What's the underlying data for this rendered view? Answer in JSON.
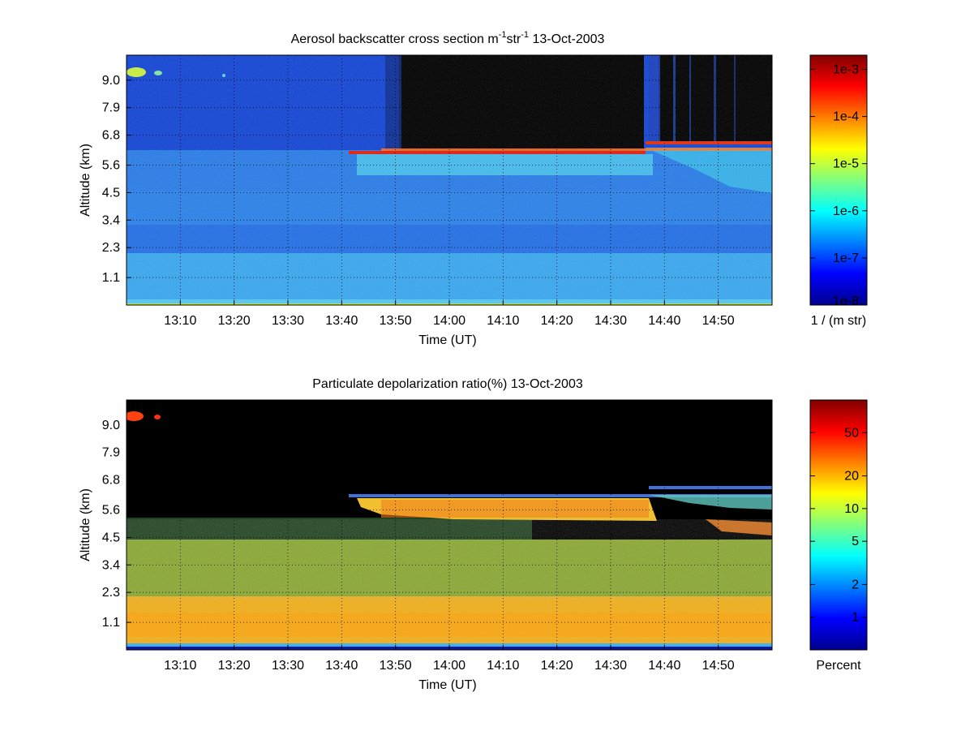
{
  "chart_data": [
    {
      "type": "heatmap",
      "title_main": "Aerosol backscatter cross section m",
      "title_sup1": "-1",
      "title_mid": "str",
      "title_sup2": "-1",
      "title_date": "13-Oct-2003",
      "xlabel": "Time (UT)",
      "ylabel": "Altitude (km)",
      "x_range": [
        "13:00",
        "15:00"
      ],
      "x_ticks": [
        "13:10",
        "13:20",
        "13:30",
        "13:40",
        "13:50",
        "14:00",
        "14:10",
        "14:20",
        "14:30",
        "14:40",
        "14:50"
      ],
      "y_range": [
        0.0,
        10.0
      ],
      "y_ticks": [
        1.1,
        2.3,
        3.4,
        4.5,
        5.6,
        6.8,
        7.9,
        9.0
      ],
      "y_tick_labels": [
        "1.1",
        "2.3",
        "3.4",
        "4.5",
        "5.6",
        "6.8",
        "7.9",
        "9.0"
      ],
      "grid": true,
      "colorbar": {
        "scale": "log",
        "range": [
          1e-08,
          0.002
        ],
        "ticks": [
          1e-08,
          1e-07,
          1e-06,
          1e-05,
          0.0001,
          0.001
        ],
        "tick_labels": [
          "1e-8",
          "1e-7",
          "1e-6",
          "1e-5",
          "1e-4",
          "1e-3"
        ],
        "label": "1 / (m str)",
        "colormap": "jet"
      }
    },
    {
      "type": "heatmap",
      "title": "Particulate depolarization ratio(%)  13-Oct-2003",
      "xlabel": "Time (UT)",
      "ylabel": "Altitude (km)",
      "x_range": [
        "13:00",
        "15:00"
      ],
      "x_ticks": [
        "13:10",
        "13:20",
        "13:30",
        "13:40",
        "13:50",
        "14:00",
        "14:10",
        "14:20",
        "14:30",
        "14:40",
        "14:50"
      ],
      "y_range": [
        0.0,
        10.0
      ],
      "y_ticks": [
        1.1,
        2.3,
        3.4,
        4.5,
        5.6,
        6.8,
        7.9,
        9.0
      ],
      "y_tick_labels": [
        "1.1",
        "2.3",
        "3.4",
        "4.5",
        "5.6",
        "6.8",
        "7.9",
        "9.0"
      ],
      "grid": true,
      "colorbar": {
        "scale": "log",
        "range": [
          0.5,
          100
        ],
        "ticks": [
          1,
          2,
          5,
          10,
          20,
          50
        ],
        "tick_labels": [
          "1",
          "2",
          "5",
          "10",
          "20",
          "50"
        ],
        "label": "Percent",
        "colormap": "jet"
      }
    }
  ]
}
